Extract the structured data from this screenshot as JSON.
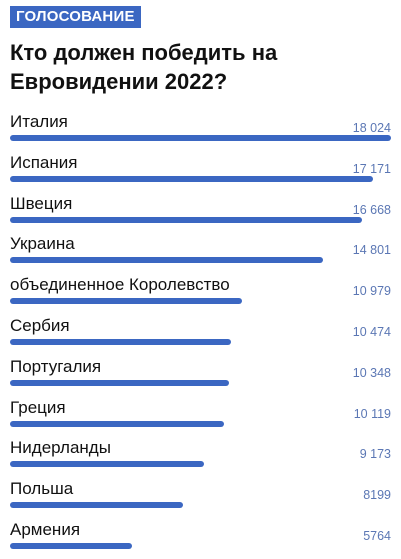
{
  "poll": {
    "badge": "ГОЛОСОВАНИЕ",
    "title": "Кто должен победить на Евровидении 2022?",
    "bar_color": "#3b67c2",
    "count_color": "#5b77b4",
    "options": [
      {
        "label": "Италия",
        "count": "18 024",
        "votes": 18024
      },
      {
        "label": "Испания",
        "count": "17 171",
        "votes": 17171
      },
      {
        "label": "Швеция",
        "count": "16 668",
        "votes": 16668
      },
      {
        "label": "Украина",
        "count": "14 801",
        "votes": 14801
      },
      {
        "label": "объединенное Королевство",
        "count": "10 979",
        "votes": 10979
      },
      {
        "label": "Сербия",
        "count": "10 474",
        "votes": 10474
      },
      {
        "label": "Португалия",
        "count": "10 348",
        "votes": 10348
      },
      {
        "label": "Греция",
        "count": "10 119",
        "votes": 10119
      },
      {
        "label": "Нидерланды",
        "count": "9 173",
        "votes": 9173
      },
      {
        "label": "Польша",
        "count": "8199",
        "votes": 8199
      },
      {
        "label": "Армения",
        "count": "5764",
        "votes": 5764
      }
    ]
  }
}
